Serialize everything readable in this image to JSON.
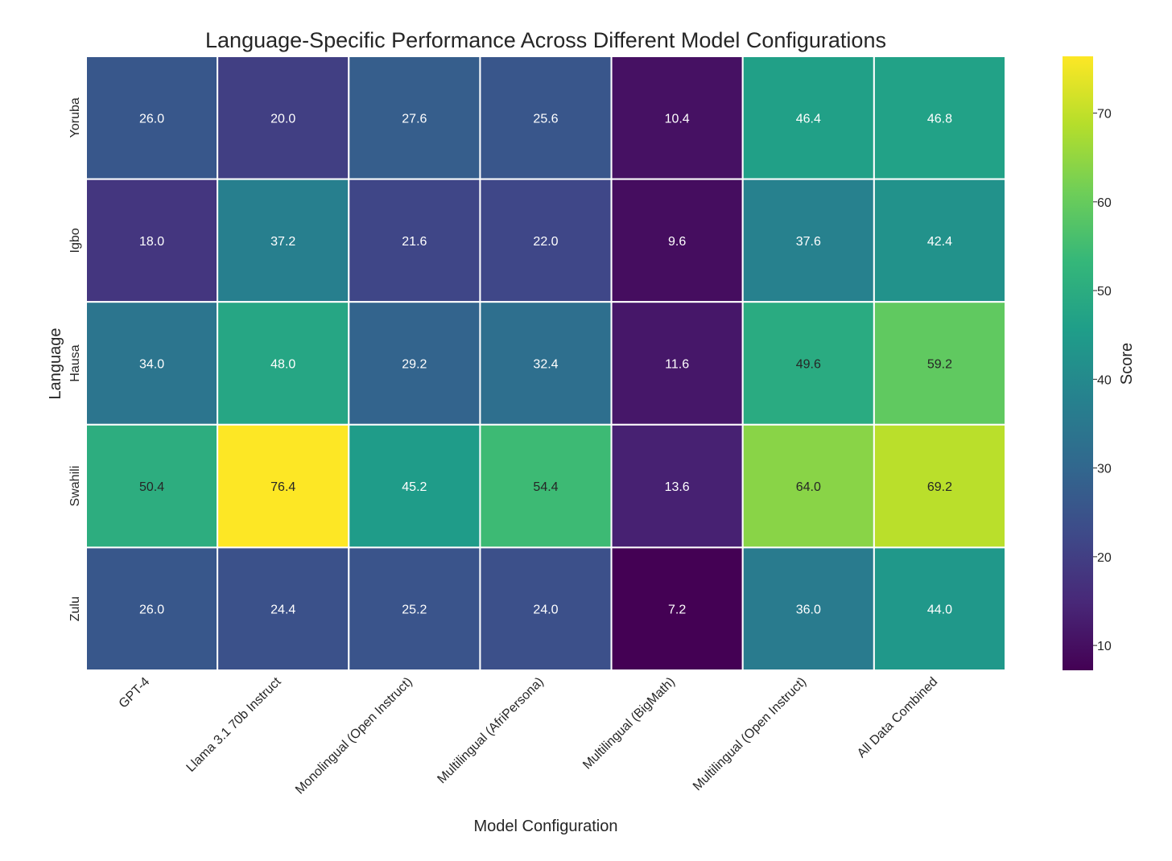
{
  "chart_data": {
    "type": "heatmap",
    "title": "Language-Specific Performance Across Different Model Configurations",
    "xlabel": "Model Configuration",
    "ylabel": "Language",
    "x_categories": [
      "GPT-4",
      "Llama 3.1 70b Instruct",
      "Monolingual (Open Instruct)",
      "Multilingual (AfriPersona)",
      "Multilingual (BigMath)",
      "Multilingual (Open Instruct)",
      "All Data Combined"
    ],
    "y_categories": [
      "Yoruba",
      "Igbo",
      "Hausa",
      "Swahili",
      "Zulu"
    ],
    "values": [
      [
        26.0,
        20.0,
        27.6,
        25.6,
        10.4,
        46.4,
        46.8
      ],
      [
        18.0,
        37.2,
        21.6,
        22.0,
        9.6,
        37.6,
        42.4
      ],
      [
        34.0,
        48.0,
        29.2,
        32.4,
        11.6,
        49.6,
        59.2
      ],
      [
        50.4,
        76.4,
        45.2,
        54.4,
        13.6,
        64.0,
        69.2
      ],
      [
        26.0,
        24.4,
        25.2,
        24.0,
        7.2,
        36.0,
        44.0
      ]
    ],
    "annotations": [
      [
        "26.0",
        "20.0",
        "27.6",
        "25.6",
        "10.4",
        "46.4",
        "46.8"
      ],
      [
        "18.0",
        "37.2",
        "21.6",
        "22.0",
        "9.6",
        "37.6",
        "42.4"
      ],
      [
        "34.0",
        "48.0",
        "29.2",
        "32.4",
        "11.6",
        "49.6",
        "59.2"
      ],
      [
        "50.4",
        "76.4",
        "45.2",
        "54.4",
        "13.6",
        "64.0",
        "69.2"
      ],
      [
        "26.0",
        "24.4",
        "25.2",
        "24.0",
        "7.2",
        "36.0",
        "44.0"
      ]
    ],
    "colormap": "viridis",
    "vmin": 7.2,
    "vmax": 76.4,
    "colorbar": {
      "label": "Score",
      "ticks": [
        10,
        20,
        30,
        40,
        50,
        60,
        70
      ]
    },
    "grid": false,
    "cell_border_color": "#ffffff"
  }
}
